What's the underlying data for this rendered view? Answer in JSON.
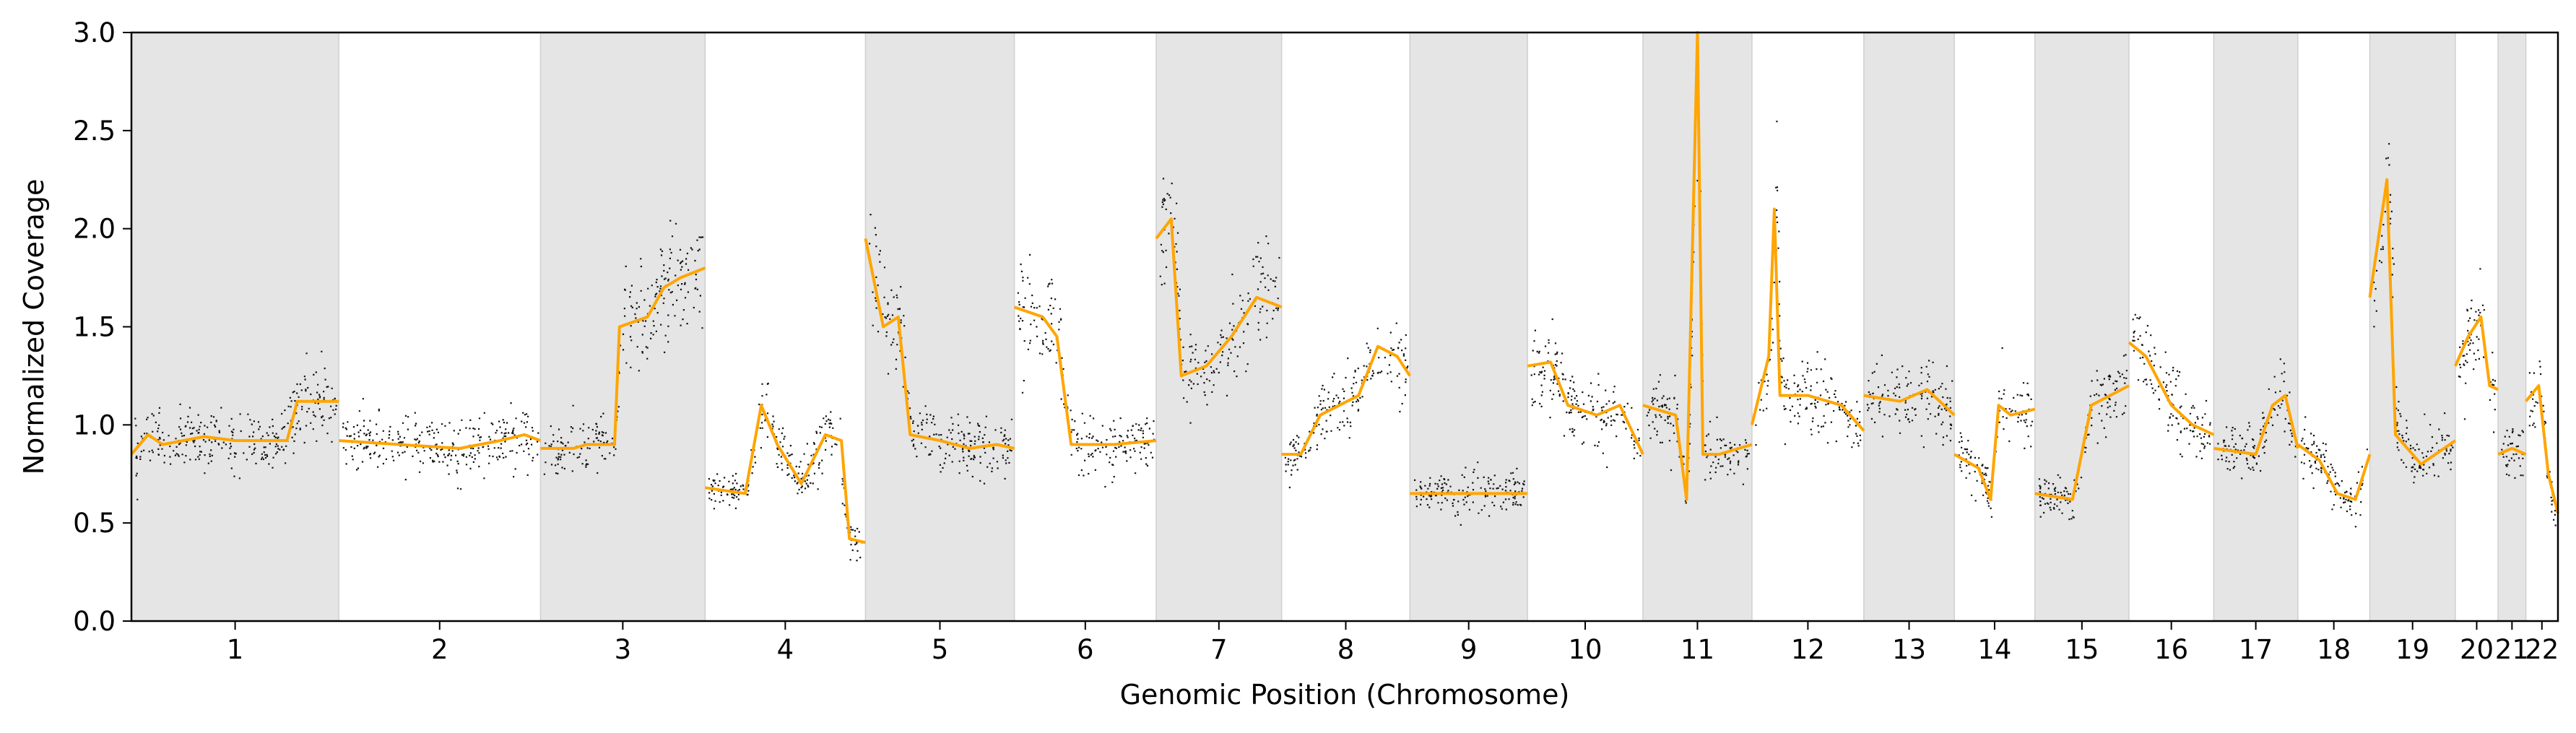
{
  "chart_data": {
    "type": "scatter",
    "title": "",
    "xlabel": "Genomic Position (Chromosome)",
    "ylabel": "Normalized Coverage",
    "ylim": [
      0.0,
      3.0
    ],
    "yticks": [
      "0.0",
      "0.5",
      "1.0",
      "1.5",
      "2.0",
      "2.5",
      "3.0"
    ],
    "grid": false,
    "legend": "none",
    "colors": {
      "points": "#111111",
      "segments": "#FFA500",
      "band": "#E5E5E5"
    },
    "chromosomes": [
      {
        "name": "1",
        "shaded": true,
        "segments": [
          [
            0.0,
            0.85
          ],
          [
            0.08,
            0.95
          ],
          [
            0.15,
            0.9
          ],
          [
            0.25,
            0.92
          ],
          [
            0.35,
            0.94
          ],
          [
            0.5,
            0.92
          ],
          [
            0.75,
            0.92
          ],
          [
            0.8,
            1.12
          ],
          [
            0.9,
            1.12
          ],
          [
            1.0,
            1.12
          ]
        ]
      },
      {
        "name": "2",
        "shaded": false,
        "segments": [
          [
            0.0,
            0.92
          ],
          [
            0.3,
            0.9
          ],
          [
            0.6,
            0.88
          ],
          [
            0.8,
            0.92
          ],
          [
            0.92,
            0.95
          ],
          [
            1.0,
            0.92
          ]
        ]
      },
      {
        "name": "3",
        "shaded": true,
        "segments": [
          [
            0.0,
            0.88
          ],
          [
            0.2,
            0.88
          ],
          [
            0.28,
            0.9
          ],
          [
            0.45,
            0.9
          ],
          [
            0.48,
            1.5
          ],
          [
            0.65,
            1.55
          ],
          [
            0.75,
            1.7
          ],
          [
            0.85,
            1.75
          ],
          [
            1.0,
            1.8
          ]
        ]
      },
      {
        "name": "4",
        "shaded": false,
        "segments": [
          [
            0.0,
            0.68
          ],
          [
            0.25,
            0.65
          ],
          [
            0.35,
            1.1
          ],
          [
            0.45,
            0.9
          ],
          [
            0.6,
            0.7
          ],
          [
            0.75,
            0.95
          ],
          [
            0.85,
            0.92
          ],
          [
            0.9,
            0.42
          ],
          [
            1.0,
            0.4
          ]
        ]
      },
      {
        "name": "5",
        "shaded": true,
        "segments": [
          [
            0.0,
            1.95
          ],
          [
            0.12,
            1.5
          ],
          [
            0.22,
            1.55
          ],
          [
            0.3,
            0.95
          ],
          [
            0.5,
            0.92
          ],
          [
            0.7,
            0.88
          ],
          [
            0.88,
            0.9
          ],
          [
            1.0,
            0.88
          ]
        ]
      },
      {
        "name": "6",
        "shaded": false,
        "segments": [
          [
            0.0,
            1.6
          ],
          [
            0.2,
            1.55
          ],
          [
            0.3,
            1.45
          ],
          [
            0.4,
            0.9
          ],
          [
            0.7,
            0.9
          ],
          [
            1.0,
            0.92
          ]
        ]
      },
      {
        "name": "7",
        "shaded": true,
        "segments": [
          [
            0.0,
            1.95
          ],
          [
            0.12,
            2.05
          ],
          [
            0.2,
            1.25
          ],
          [
            0.4,
            1.3
          ],
          [
            0.6,
            1.45
          ],
          [
            0.8,
            1.65
          ],
          [
            1.0,
            1.6
          ]
        ]
      },
      {
        "name": "8",
        "shaded": false,
        "segments": [
          [
            0.0,
            0.85
          ],
          [
            0.15,
            0.85
          ],
          [
            0.3,
            1.05
          ],
          [
            0.45,
            1.1
          ],
          [
            0.6,
            1.15
          ],
          [
            0.75,
            1.4
          ],
          [
            0.9,
            1.35
          ],
          [
            1.0,
            1.25
          ]
        ]
      },
      {
        "name": "9",
        "shaded": true,
        "segments": [
          [
            0.0,
            0.65
          ],
          [
            0.3,
            0.65
          ],
          [
            1.0,
            0.65
          ]
        ]
      },
      {
        "name": "10",
        "shaded": false,
        "segments": [
          [
            0.0,
            1.3
          ],
          [
            0.2,
            1.32
          ],
          [
            0.35,
            1.1
          ],
          [
            0.6,
            1.05
          ],
          [
            0.8,
            1.1
          ],
          [
            1.0,
            0.85
          ]
        ]
      },
      {
        "name": "11",
        "shaded": true,
        "segments": [
          [
            0.0,
            1.1
          ],
          [
            0.3,
            1.05
          ],
          [
            0.4,
            0.62
          ],
          [
            0.5,
            3.0
          ],
          [
            0.55,
            0.85
          ],
          [
            0.7,
            0.85
          ],
          [
            1.0,
            0.9
          ]
        ]
      },
      {
        "name": "12",
        "shaded": false,
        "segments": [
          [
            0.0,
            1.0
          ],
          [
            0.15,
            1.35
          ],
          [
            0.2,
            2.1
          ],
          [
            0.25,
            1.15
          ],
          [
            0.5,
            1.15
          ],
          [
            0.8,
            1.1
          ],
          [
            1.0,
            0.97
          ]
        ]
      },
      {
        "name": "13",
        "shaded": true,
        "segments": [
          [
            0.0,
            1.15
          ],
          [
            0.4,
            1.12
          ],
          [
            0.7,
            1.18
          ],
          [
            1.0,
            1.05
          ]
        ]
      },
      {
        "name": "14",
        "shaded": false,
        "segments": [
          [
            0.0,
            0.85
          ],
          [
            0.3,
            0.78
          ],
          [
            0.45,
            0.62
          ],
          [
            0.55,
            1.1
          ],
          [
            0.7,
            1.05
          ],
          [
            1.0,
            1.08
          ]
        ]
      },
      {
        "name": "15",
        "shaded": true,
        "segments": [
          [
            0.0,
            0.65
          ],
          [
            0.4,
            0.62
          ],
          [
            0.6,
            1.1
          ],
          [
            0.8,
            1.15
          ],
          [
            1.0,
            1.2
          ]
        ]
      },
      {
        "name": "16",
        "shaded": false,
        "segments": [
          [
            0.0,
            1.42
          ],
          [
            0.2,
            1.35
          ],
          [
            0.5,
            1.1
          ],
          [
            0.75,
            1.0
          ],
          [
            1.0,
            0.95
          ]
        ]
      },
      {
        "name": "17",
        "shaded": true,
        "segments": [
          [
            0.0,
            0.88
          ],
          [
            0.5,
            0.85
          ],
          [
            0.7,
            1.1
          ],
          [
            0.85,
            1.15
          ],
          [
            1.0,
            0.88
          ]
        ]
      },
      {
        "name": "18",
        "shaded": false,
        "segments": [
          [
            0.0,
            0.9
          ],
          [
            0.3,
            0.82
          ],
          [
            0.55,
            0.65
          ],
          [
            0.8,
            0.62
          ],
          [
            1.0,
            0.85
          ]
        ]
      },
      {
        "name": "19",
        "shaded": true,
        "segments": [
          [
            0.0,
            1.65
          ],
          [
            0.2,
            2.25
          ],
          [
            0.3,
            0.95
          ],
          [
            0.6,
            0.8
          ],
          [
            1.0,
            0.92
          ]
        ]
      },
      {
        "name": "20",
        "shaded": false,
        "segments": [
          [
            0.0,
            1.3
          ],
          [
            0.3,
            1.45
          ],
          [
            0.6,
            1.55
          ],
          [
            0.8,
            1.2
          ],
          [
            1.0,
            1.18
          ]
        ]
      },
      {
        "name": "21",
        "shaded": true,
        "segments": [
          [
            0.0,
            0.85
          ],
          [
            0.5,
            0.88
          ],
          [
            1.0,
            0.85
          ]
        ]
      },
      {
        "name": "22",
        "shaded": false,
        "segments": [
          [
            0.0,
            1.12
          ],
          [
            0.4,
            1.2
          ],
          [
            0.7,
            0.75
          ],
          [
            1.0,
            0.55
          ]
        ]
      }
    ]
  }
}
